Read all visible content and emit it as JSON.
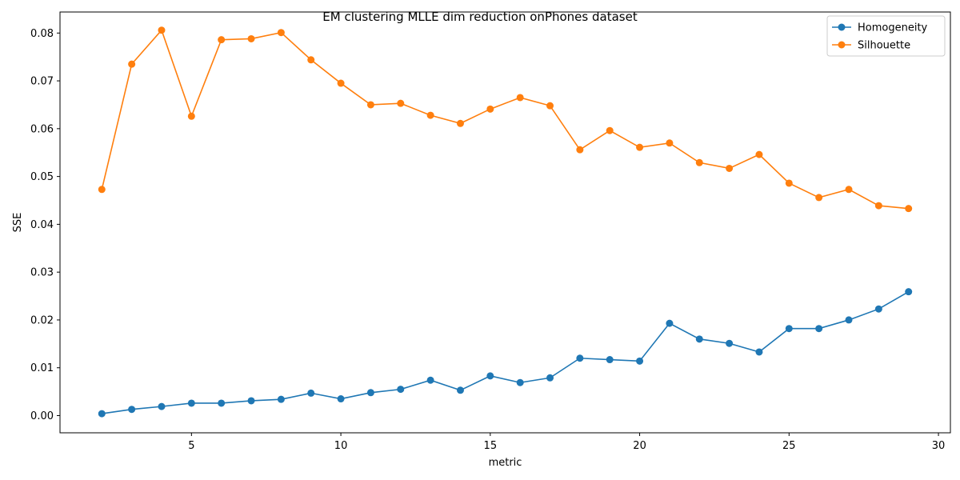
{
  "chart_data": {
    "type": "line",
    "title": "EM clustering MLLE dim reduction onPhones dataset",
    "xlabel": "metric",
    "ylabel": "SSE",
    "xlim": [
      0.6,
      30.4
    ],
    "ylim": [
      -0.0036,
      0.0844
    ],
    "xticks": [
      5,
      10,
      15,
      20,
      25,
      30
    ],
    "yticks": [
      0.0,
      0.01,
      0.02,
      0.03,
      0.04,
      0.05,
      0.06,
      0.07,
      0.08
    ],
    "ytick_labels": [
      "0.00",
      "0.01",
      "0.02",
      "0.03",
      "0.04",
      "0.05",
      "0.06",
      "0.07",
      "0.08"
    ],
    "legend_position": "top-right",
    "grid": false,
    "x": [
      2,
      3,
      4,
      5,
      6,
      7,
      8,
      9,
      10,
      11,
      12,
      13,
      14,
      15,
      16,
      17,
      18,
      19,
      20,
      21,
      22,
      23,
      24,
      25,
      26,
      27,
      28,
      29
    ],
    "series": [
      {
        "name": "Homogeneity",
        "color": "#1f77b4",
        "marker": "circle",
        "values": [
          0.0004,
          0.0013,
          0.0019,
          0.0026,
          0.0026,
          0.0031,
          0.0034,
          0.0047,
          0.0035,
          0.0048,
          0.0055,
          0.0074,
          0.0053,
          0.0083,
          0.0069,
          0.0079,
          0.012,
          0.0117,
          0.0114,
          0.0193,
          0.016,
          0.0151,
          0.0133,
          0.0182,
          0.0182,
          0.02,
          0.0223,
          0.0259
        ]
      },
      {
        "name": "Silhouette",
        "color": "#ff7f0e",
        "marker": "circle",
        "values": [
          0.0473,
          0.0735,
          0.0806,
          0.0626,
          0.0786,
          0.0788,
          0.0801,
          0.0744,
          0.0695,
          0.065,
          0.0653,
          0.0628,
          0.0611,
          0.0641,
          0.0665,
          0.0648,
          0.0556,
          0.0596,
          0.0561,
          0.057,
          0.0529,
          0.0517,
          0.0546,
          0.0486,
          0.0456,
          0.0473,
          0.0439,
          0.0433
        ]
      }
    ]
  }
}
